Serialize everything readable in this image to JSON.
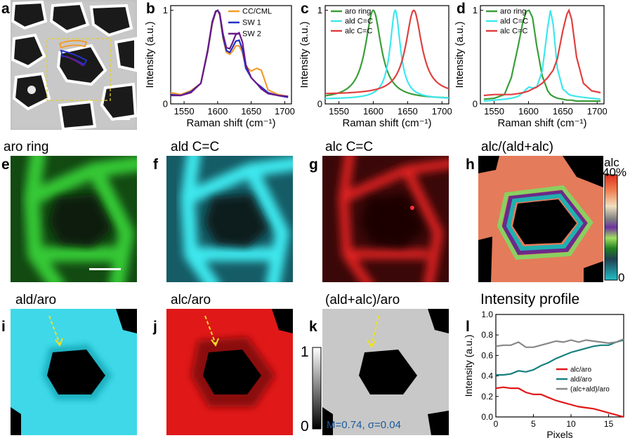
{
  "panel_letters": {
    "a": "a",
    "b": "b",
    "c": "c",
    "d": "d",
    "e": "e",
    "f": "f",
    "g": "g",
    "h": "h",
    "i": "i",
    "j": "j",
    "k": "k",
    "l": "l"
  },
  "map_titles": {
    "e": "aro ring",
    "f": "ald C=C",
    "g": "alc C=C",
    "h": "alc/(ald+alc)",
    "i": "ald/aro",
    "j": "alc/aro",
    "k": "(ald+alc)/aro",
    "l": "Intensity profile"
  },
  "colorbar_h": {
    "label": "alc",
    "top": "40%",
    "bottom": "0"
  },
  "colorbar_k": {
    "top": "1",
    "bottom": "0"
  },
  "stats_k": "M=0.74, σ=0.04",
  "colors": {
    "green": "#3a9e3a",
    "cyan": "#3de8ee",
    "red": "#e04040",
    "orange": "#f39c2c",
    "blue": "#2230c8",
    "purple": "#6a1a8a",
    "teal": "#188080",
    "gray": "#888888"
  },
  "chart_data": [
    {
      "type": "line",
      "panel": "b",
      "xlabel": "Raman shift (cm⁻¹)",
      "ylabel": "Intensity (a.u.)",
      "xlim": [
        1530,
        1710
      ],
      "ylim": [
        0,
        1.05
      ],
      "xticks": [
        1550,
        1600,
        1650,
        1700
      ],
      "yticks": [
        0,
        1
      ],
      "x": [
        1530,
        1545,
        1560,
        1575,
        1585,
        1592,
        1597,
        1600,
        1603,
        1608,
        1613,
        1618,
        1622,
        1627,
        1632,
        1637,
        1642,
        1650,
        1658,
        1665,
        1675,
        1690,
        1705
      ],
      "series": [
        {
          "name": "CC/CML",
          "values": [
            0.12,
            0.1,
            0.14,
            0.22,
            0.55,
            0.85,
            0.98,
            1.0,
            0.95,
            0.7,
            0.55,
            0.53,
            0.56,
            0.62,
            0.62,
            0.55,
            0.4,
            0.35,
            0.38,
            0.36,
            0.15,
            0.1,
            0.08
          ]
        },
        {
          "name": "SW 1",
          "values": [
            0.1,
            0.09,
            0.13,
            0.22,
            0.56,
            0.87,
            0.98,
            1.0,
            0.96,
            0.72,
            0.57,
            0.55,
            0.6,
            0.67,
            0.68,
            0.58,
            0.38,
            0.28,
            0.22,
            0.18,
            0.12,
            0.09,
            0.07
          ]
        },
        {
          "name": "SW 2",
          "values": [
            0.09,
            0.09,
            0.12,
            0.22,
            0.57,
            0.88,
            0.99,
            1.0,
            0.97,
            0.75,
            0.6,
            0.59,
            0.65,
            0.74,
            0.76,
            0.66,
            0.42,
            0.28,
            0.22,
            0.16,
            0.11,
            0.09,
            0.08
          ]
        }
      ]
    },
    {
      "type": "line",
      "panel": "c",
      "xlabel": "Raman shift (cm⁻¹)",
      "ylabel": "Intensity (a.u.)",
      "xlim": [
        1530,
        1710
      ],
      "ylim": [
        0,
        1.05
      ],
      "xticks": [
        1550,
        1600,
        1650,
        1700
      ],
      "yticks": [
        0,
        1
      ],
      "series": [
        {
          "name": "aro ring",
          "center": 1600,
          "width": 14,
          "baseline": 0.05
        },
        {
          "name": "ald C=C",
          "center": 1632,
          "width": 9,
          "baseline": 0.05
        },
        {
          "name": "alc C=C",
          "center": 1659,
          "width": 14,
          "baseline": 0.1
        }
      ]
    },
    {
      "type": "line",
      "panel": "d",
      "xlabel": "Raman shift (cm⁻¹)",
      "ylabel": "Intensity (a.u.)",
      "xlim": [
        1530,
        1710
      ],
      "ylim": [
        0,
        1.05
      ],
      "xticks": [
        1550,
        1600,
        1650,
        1700
      ],
      "yticks": [
        0,
        1
      ],
      "x": [
        1535,
        1550,
        1565,
        1575,
        1585,
        1592,
        1597,
        1601,
        1606,
        1612,
        1620,
        1628,
        1632,
        1636,
        1642,
        1650,
        1656,
        1659,
        1663,
        1670,
        1680,
        1692,
        1705
      ],
      "series": [
        {
          "name": "aro ring",
          "values": [
            0.05,
            0.06,
            0.1,
            0.28,
            0.62,
            0.88,
            0.99,
            1.0,
            0.92,
            0.62,
            0.3,
            0.14,
            0.1,
            0.08,
            0.06,
            0.05,
            0.04,
            0.04,
            0.04,
            0.03,
            0.03,
            0.03,
            0.03
          ]
        },
        {
          "name": "ald C=C",
          "values": [
            0.03,
            0.04,
            0.05,
            0.06,
            0.08,
            0.12,
            0.16,
            0.18,
            0.17,
            0.18,
            0.35,
            0.82,
            1.0,
            0.85,
            0.38,
            0.16,
            0.12,
            0.1,
            0.09,
            0.08,
            0.07,
            0.06,
            0.05
          ]
        },
        {
          "name": "alc C=C",
          "values": [
            0.09,
            0.1,
            0.1,
            0.1,
            0.11,
            0.12,
            0.13,
            0.14,
            0.16,
            0.18,
            0.22,
            0.28,
            0.32,
            0.36,
            0.48,
            0.78,
            0.96,
            1.0,
            0.9,
            0.5,
            0.22,
            0.14,
            0.12
          ]
        }
      ]
    },
    {
      "type": "line",
      "panel": "l",
      "title": "Intensity profile",
      "xlabel": "Pixels",
      "ylabel": "Intensity (a.u.)",
      "xlim": [
        0,
        17
      ],
      "ylim": [
        0,
        1.0
      ],
      "xticks": [
        0,
        5,
        10,
        15
      ],
      "yticks": [
        0.0,
        0.2,
        0.4,
        0.6,
        0.8,
        1.0
      ],
      "x": [
        0,
        1,
        2,
        3,
        4,
        5,
        6,
        7,
        8,
        9,
        10,
        11,
        12,
        13,
        14,
        15,
        16,
        17
      ],
      "series": [
        {
          "name": "alc/aro",
          "values": [
            0.28,
            0.29,
            0.28,
            0.28,
            0.24,
            0.22,
            0.22,
            0.19,
            0.16,
            0.14,
            0.12,
            0.1,
            0.09,
            0.08,
            0.06,
            0.04,
            0.02,
            0.0
          ]
        },
        {
          "name": "ald/aro",
          "values": [
            0.41,
            0.41,
            0.42,
            0.45,
            0.44,
            0.46,
            0.5,
            0.53,
            0.57,
            0.6,
            0.63,
            0.65,
            0.67,
            0.69,
            0.7,
            0.7,
            0.73,
            0.75
          ]
        },
        {
          "name": "(alc+ald)/aro",
          "values": [
            0.69,
            0.7,
            0.7,
            0.73,
            0.68,
            0.68,
            0.7,
            0.72,
            0.74,
            0.73,
            0.75,
            0.73,
            0.75,
            0.74,
            0.73,
            0.72,
            0.73,
            0.76
          ]
        }
      ]
    }
  ]
}
